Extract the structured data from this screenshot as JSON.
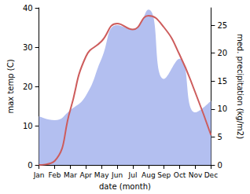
{
  "chart_data": {
    "type": "line",
    "x_label": "date (month)",
    "y_label": "max temp (C)",
    "y2_label": "med. precipitation (kg/m2)",
    "categories": [
      "Jan",
      "Feb",
      "Mar",
      "Apr",
      "May",
      "Jun",
      "Jul",
      "Aug",
      "Sep",
      "Oct",
      "Nov",
      "Dec"
    ],
    "ylim": [
      0,
      40
    ],
    "yticks": [
      0,
      10,
      20,
      30,
      40
    ],
    "y2lim": [
      0,
      28.1
    ],
    "y2ticks": [
      0,
      5,
      10,
      15,
      20,
      25
    ],
    "grid": false,
    "series": [
      {
        "type": "area",
        "axis": "y2",
        "color": "#b3bff0",
        "values": [
          8.7,
          8.0,
          9.8,
          12.4,
          19.0,
          25.0,
          24.2,
          27.8,
          15.4,
          19.0,
          9.4,
          11.5
        ]
      },
      {
        "type": "line",
        "color": "#cd5c5c",
        "values": [
          0,
          1,
          14,
          27.6,
          31.5,
          36,
          34.5,
          38,
          35,
          28,
          18.4,
          7.6
        ]
      }
    ]
  }
}
